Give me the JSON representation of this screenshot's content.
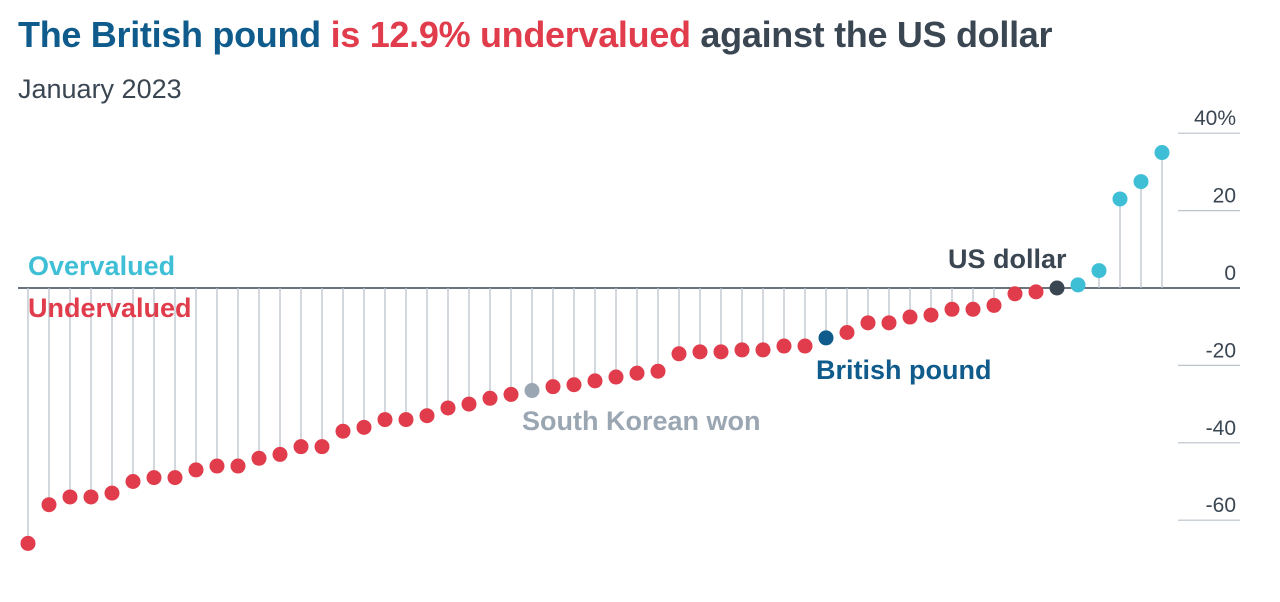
{
  "header": {
    "title_part1": "The British pound",
    "title_part2": " is 12.9% undervalued",
    "title_part3": " against the US dollar",
    "subtitle": "January 2023"
  },
  "colors": {
    "blue": "#0e5b8c",
    "red": "#e03c4b",
    "dark": "#3a4652",
    "cyan": "#3fbfd6",
    "grey": "#9aa6b2",
    "stem": "#b9c3cc"
  },
  "labels": {
    "overvalued": "Overvalued",
    "undervalued": "Undervalued",
    "us_dollar": "US dollar",
    "british_pound": "British pound",
    "south_korean_won": "South Korean won"
  },
  "chart_data": {
    "type": "scatter",
    "title": "The British pound is 12.9% undervalued against the US dollar",
    "subtitle": "January 2023",
    "ylabel": "",
    "ylim": [
      -70,
      45
    ],
    "yticks": [
      40,
      20,
      0,
      -20,
      -40,
      -60
    ],
    "ytick_labels": [
      "40%",
      "20",
      "0",
      "-20",
      "-40",
      "-60"
    ],
    "values": [
      -66,
      -56,
      -54,
      -54,
      -53,
      -50,
      -49,
      -49,
      -47,
      -46,
      -46,
      -44,
      -43,
      -41,
      -41,
      -37,
      -36,
      -34,
      -34,
      -33,
      -31,
      -30,
      -28.5,
      -27.5,
      -26.5,
      -25.5,
      -25,
      -24,
      -23,
      -22,
      -21.5,
      -17,
      -16.5,
      -16.5,
      -16,
      -16,
      -15,
      -15,
      -12.9,
      -11.5,
      -9,
      -9,
      -7.5,
      -7,
      -5.5,
      -5.5,
      -4.5,
      -1.5,
      -1,
      0,
      0.8,
      4.5,
      23,
      27.5,
      35
    ],
    "highlights": {
      "south_korean_won": 24,
      "british_pound": 38,
      "us_dollar": 49
    },
    "grid": false
  }
}
